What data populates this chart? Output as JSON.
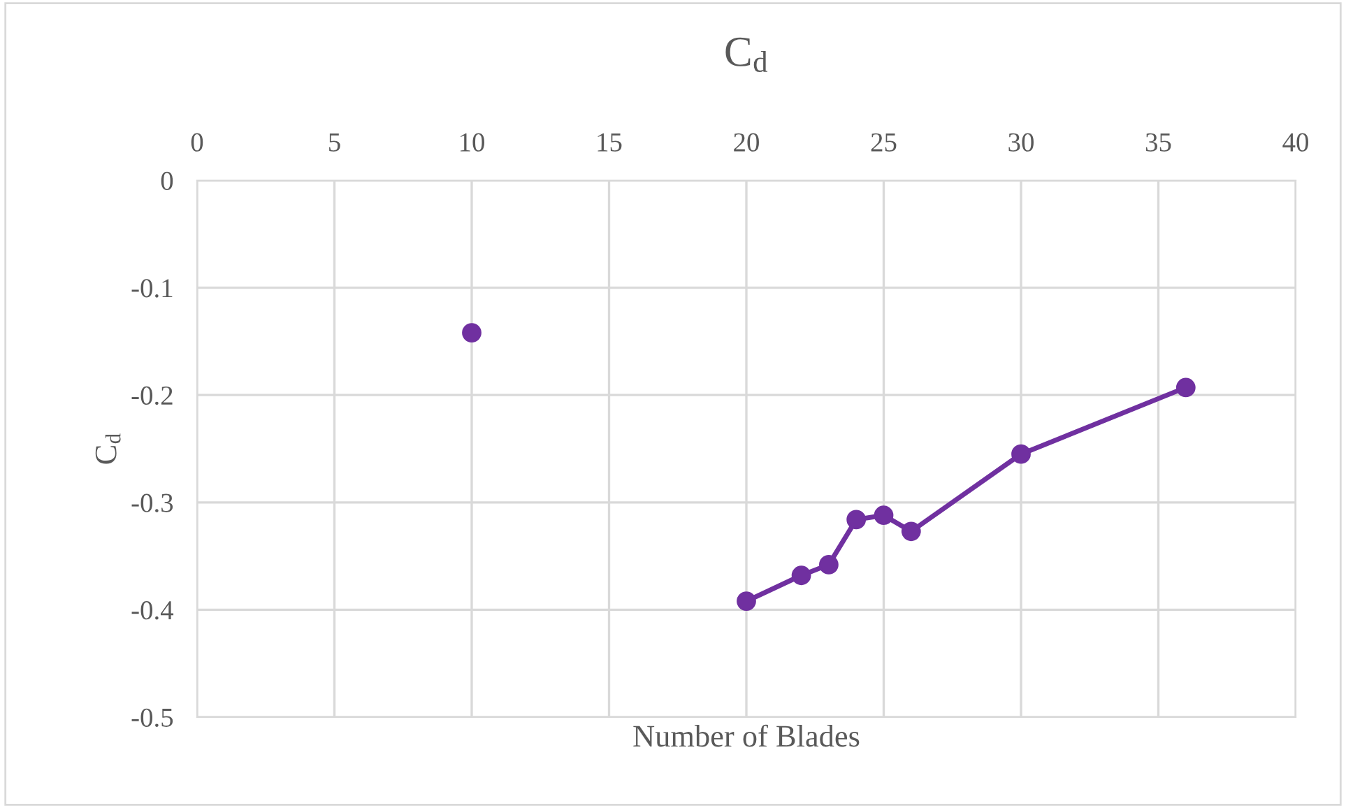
{
  "chart_data": {
    "type": "line",
    "title": "C$_{d}$",
    "xlabel": "Number of Blades",
    "ylabel": "C$_{d}$",
    "series": [
      {
        "type": "scatter",
        "color": "#7030a0",
        "x": [
          10
        ],
        "values": [
          -0.142
        ]
      },
      {
        "color": "#7030a0",
        "x": [
          20,
          22,
          23,
          24,
          25,
          26,
          30,
          36
        ],
        "values": [
          -0.392,
          -0.368,
          -0.358,
          -0.316,
          -0.312,
          -0.327,
          -0.255,
          -0.193
        ]
      }
    ],
    "xlim": [
      0,
      40
    ],
    "xticks": [
      0,
      5,
      10,
      15,
      20,
      25,
      30,
      35,
      40
    ],
    "ylim": [
      -0.5,
      0
    ],
    "yticks": [
      -0.5,
      -0.4,
      -0.3,
      -0.2,
      -0.1,
      0
    ],
    "grid": true,
    "marker": "circle",
    "line_style": "solid"
  }
}
